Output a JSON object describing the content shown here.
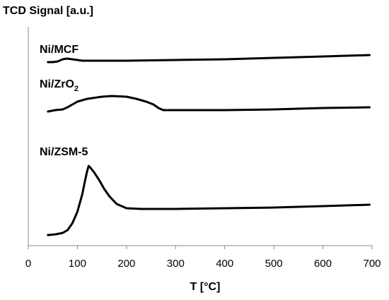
{
  "chart_data": {
    "type": "line",
    "title": "",
    "ylabel": "TCD Signal [a.u.]",
    "xlabel": "T [°C]",
    "xlim": [
      0,
      700
    ],
    "x_ticks": [
      "0",
      "100",
      "200",
      "300",
      "400",
      "500",
      "600",
      "700"
    ],
    "y_ticks_shown": false,
    "grid": false,
    "line_color": "#000000",
    "series": [
      {
        "name": "Ni/MCF",
        "label_parts": [
          "Ni/MCF",
          ""
        ],
        "points": [
          [
            40,
            88
          ],
          [
            50,
            88
          ],
          [
            60,
            87
          ],
          [
            70,
            84
          ],
          [
            78,
            83
          ],
          [
            90,
            84
          ],
          [
            110,
            86
          ],
          [
            140,
            86
          ],
          [
            200,
            86
          ],
          [
            300,
            85
          ],
          [
            400,
            84
          ],
          [
            500,
            82
          ],
          [
            600,
            80
          ],
          [
            695,
            78
          ]
        ]
      },
      {
        "name": "Ni/ZrO2",
        "label_parts": [
          "Ni/ZrO",
          "2"
        ],
        "points": [
          [
            40,
            158
          ],
          [
            55,
            156
          ],
          [
            70,
            155
          ],
          [
            80,
            152
          ],
          [
            100,
            144
          ],
          [
            120,
            140
          ],
          [
            150,
            137
          ],
          [
            170,
            136
          ],
          [
            200,
            137
          ],
          [
            220,
            140
          ],
          [
            240,
            144
          ],
          [
            255,
            148
          ],
          [
            265,
            153
          ],
          [
            275,
            156
          ],
          [
            285,
            156
          ],
          [
            400,
            156
          ],
          [
            500,
            155
          ],
          [
            600,
            153
          ],
          [
            695,
            152
          ]
        ]
      },
      {
        "name": "Ni/ZSM-5",
        "label_parts": [
          "Ni/ZSM-5",
          ""
        ],
        "points": [
          [
            40,
            333
          ],
          [
            55,
            332
          ],
          [
            70,
            330
          ],
          [
            80,
            326
          ],
          [
            90,
            316
          ],
          [
            100,
            300
          ],
          [
            110,
            275
          ],
          [
            115,
            258
          ],
          [
            120,
            242
          ],
          [
            123,
            235
          ],
          [
            127,
            238
          ],
          [
            135,
            245
          ],
          [
            145,
            256
          ],
          [
            155,
            268
          ],
          [
            165,
            278
          ],
          [
            180,
            289
          ],
          [
            200,
            295
          ],
          [
            230,
            296
          ],
          [
            300,
            296
          ],
          [
            400,
            295
          ],
          [
            500,
            294
          ],
          [
            600,
            292
          ],
          [
            695,
            290
          ]
        ]
      }
    ]
  }
}
